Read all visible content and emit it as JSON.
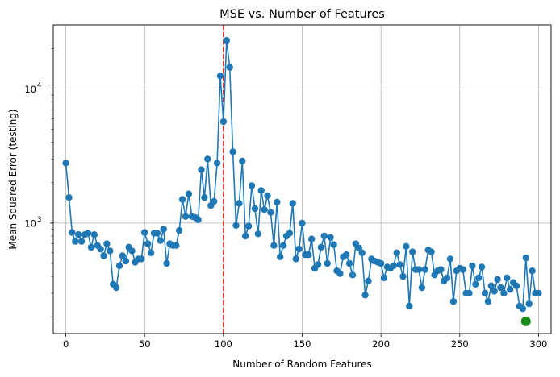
{
  "chart_data": {
    "type": "line",
    "title": "MSE vs. Number of Features",
    "xlabel": "Number of Random Features",
    "ylabel": "Mean Squared Error (testing)",
    "xlim": [
      -8,
      308
    ],
    "ylim": [
      150,
      30000
    ],
    "yscale": "log",
    "grid": true,
    "x_ticks": [
      {
        "value": 0,
        "label": "0"
      },
      {
        "value": 50,
        "label": "50"
      },
      {
        "value": 100,
        "label": "100"
      },
      {
        "value": 150,
        "label": "150"
      },
      {
        "value": 200,
        "label": "200"
      },
      {
        "value": 250,
        "label": "250"
      },
      {
        "value": 300,
        "label": "300"
      }
    ],
    "y_ticks": [
      {
        "value": 1000,
        "base": "10",
        "exponent": "3"
      },
      {
        "value": 10000,
        "base": "10",
        "exponent": "4"
      }
    ],
    "reference_line": {
      "x": 100,
      "color": "#e8241a",
      "style": "dashed"
    },
    "highlight_point": {
      "x": 292,
      "y": 185,
      "color": "#1a8a1a"
    },
    "series_color": "#1f77b4",
    "series": [
      {
        "x": [
          0,
          2,
          4,
          6,
          8,
          10,
          12,
          14,
          16,
          18,
          20,
          22,
          24,
          26,
          28,
          30,
          32,
          34,
          36,
          38,
          40,
          42,
          44,
          46,
          48,
          50,
          52,
          54,
          56,
          58,
          60,
          62,
          64,
          66,
          68,
          70,
          72,
          74,
          76,
          78,
          80,
          82,
          84,
          86,
          88,
          90,
          92,
          94,
          96,
          98,
          100,
          102,
          104,
          106,
          108,
          110,
          112,
          114,
          116,
          118,
          120,
          122,
          124,
          126,
          128,
          130,
          132,
          134,
          136,
          138,
          140,
          142,
          144,
          146,
          148,
          150,
          152,
          154,
          156,
          158,
          160,
          162,
          164,
          166,
          168,
          170,
          172,
          174,
          176,
          178,
          180,
          182,
          184,
          186,
          188,
          190,
          192,
          194,
          196,
          198,
          200,
          202,
          204,
          206,
          208,
          210,
          212,
          214,
          216,
          218,
          220,
          222,
          224,
          226,
          228,
          230,
          232,
          234,
          236,
          238,
          240,
          242,
          244,
          246,
          248,
          250,
          252,
          254,
          256,
          258,
          260,
          262,
          264,
          266,
          268,
          270,
          272,
          274,
          276,
          278,
          280,
          282,
          284,
          286,
          288,
          290,
          292,
          294,
          296,
          298,
          300
        ],
        "y": [
          2800,
          1550,
          850,
          730,
          820,
          730,
          820,
          840,
          660,
          820,
          680,
          640,
          570,
          700,
          620,
          350,
          330,
          480,
          570,
          520,
          660,
          620,
          510,
          540,
          540,
          850,
          700,
          600,
          840,
          840,
          740,
          900,
          500,
          700,
          680,
          680,
          880,
          1500,
          1120,
          1650,
          1120,
          1100,
          1060,
          2500,
          1550,
          3000,
          1350,
          1450,
          2800,
          12500,
          5700,
          23000,
          14500,
          3400,
          960,
          1400,
          2900,
          800,
          950,
          1900,
          1280,
          830,
          1750,
          1260,
          1600,
          1200,
          680,
          1430,
          560,
          680,
          800,
          840,
          1400,
          540,
          640,
          1000,
          580,
          580,
          760,
          460,
          490,
          660,
          800,
          500,
          780,
          690,
          440,
          420,
          560,
          580,
          500,
          410,
          700,
          650,
          600,
          290,
          370,
          540,
          520,
          510,
          500,
          390,
          470,
          460,
          480,
          600,
          490,
          400,
          670,
          240,
          610,
          450,
          450,
          330,
          450,
          630,
          610,
          410,
          440,
          450,
          370,
          390,
          540,
          260,
          440,
          460,
          450,
          300,
          300,
          480,
          350,
          390,
          470,
          300,
          260,
          340,
          310,
          380,
          330,
          300,
          390,
          320,
          360,
          340,
          240,
          230,
          550,
          250,
          440,
          300,
          300
        ]
      }
    ]
  }
}
